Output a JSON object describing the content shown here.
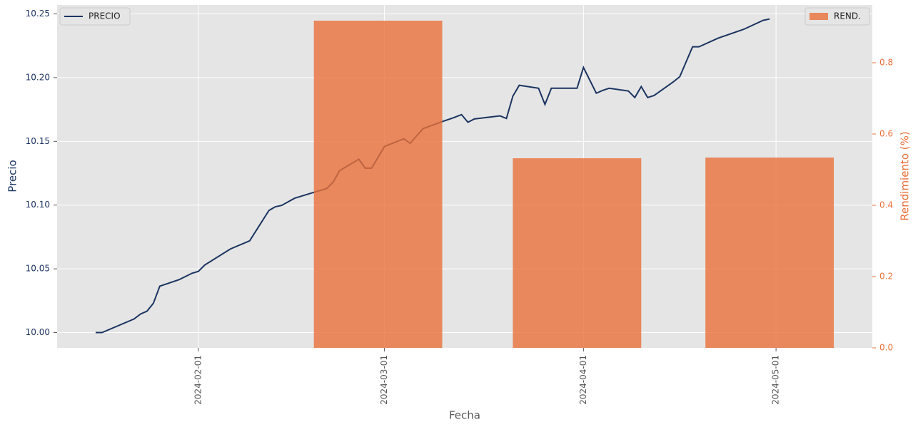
{
  "chart_data": {
    "type": "combo",
    "xlabel": "Fecha",
    "ylabel": "Precio",
    "y2label": "Rendimiento (%)",
    "xlim": [
      "2024-01-10",
      "2024-05-16"
    ],
    "xticks": [
      "2024-02-01",
      "2024-03-01",
      "2024-04-01",
      "2024-05-01"
    ],
    "ylim": [
      9.988,
      10.257
    ],
    "yticks": [
      {
        "value": 10,
        "label": "10.00"
      },
      10.05,
      {
        "value": 10.1,
        "label": "10.10"
      },
      10.15,
      {
        "value": 10.2,
        "label": "10.20"
      },
      10.25
    ],
    "y2lim": [
      0,
      0.962
    ],
    "y2ticks": [
      {
        "value": 0,
        "label": "0.0"
      },
      0.2,
      0.4,
      0.6,
      0.8
    ],
    "grid": true,
    "series": [
      {
        "name": "PRECIO",
        "type": "line",
        "color": "#1c3461",
        "legend": "upper left",
        "x": [
          "2024-01-16",
          "2024-01-17",
          "2024-01-22",
          "2024-01-23",
          "2024-01-24",
          "2024-01-25",
          "2024-01-26",
          "2024-01-29",
          "2024-01-30",
          "2024-01-31",
          "2024-02-01",
          "2024-02-02",
          "2024-02-06",
          "2024-02-09",
          "2024-02-12",
          "2024-02-13",
          "2024-02-14",
          "2024-02-16",
          "2024-02-19",
          "2024-02-21",
          "2024-02-22",
          "2024-02-23",
          "2024-02-26",
          "2024-02-27",
          "2024-02-28",
          "2024-03-01",
          "2024-03-04",
          "2024-03-05",
          "2024-03-07",
          "2024-03-10",
          "2024-03-12",
          "2024-03-13",
          "2024-03-14",
          "2024-03-15",
          "2024-03-19",
          "2024-03-20",
          "2024-03-21",
          "2024-03-22",
          "2024-03-25",
          "2024-03-26",
          "2024-03-27",
          "2024-03-31",
          "2024-04-01",
          "2024-04-03",
          "2024-04-04",
          "2024-04-05",
          "2024-04-08",
          "2024-04-09",
          "2024-04-10",
          "2024-04-11",
          "2024-04-12",
          "2024-04-15",
          "2024-04-16",
          "2024-04-18",
          "2024-04-19",
          "2024-04-22",
          "2024-04-26",
          "2024-04-29",
          "2024-04-30"
        ],
        "values": [
          10.0,
          10.0,
          10.0107,
          10.0146,
          10.0168,
          10.023,
          10.0364,
          10.0415,
          10.044,
          10.0465,
          10.048,
          10.053,
          10.0656,
          10.072,
          10.0958,
          10.0987,
          10.0998,
          10.1054,
          10.11,
          10.113,
          10.118,
          10.127,
          10.136,
          10.129,
          10.129,
          10.146,
          10.152,
          10.1485,
          10.16,
          10.1655,
          10.169,
          10.171,
          10.165,
          10.1676,
          10.17,
          10.168,
          10.1855,
          10.194,
          10.1917,
          10.179,
          10.1917,
          10.1917,
          10.208,
          10.1878,
          10.19,
          10.1917,
          10.1895,
          10.1844,
          10.193,
          10.1844,
          10.186,
          10.1967,
          10.2007,
          10.2242,
          10.2242,
          10.231,
          10.238,
          10.245,
          10.246
        ]
      },
      {
        "name": "REND.",
        "type": "bar",
        "axis": "y2",
        "color": "#e8703a",
        "legend": "upper right",
        "x": [
          "2024-02-29",
          "2024-03-31",
          "2024-04-30"
        ],
        "values": [
          0.918,
          0.532,
          0.534
        ]
      }
    ]
  }
}
